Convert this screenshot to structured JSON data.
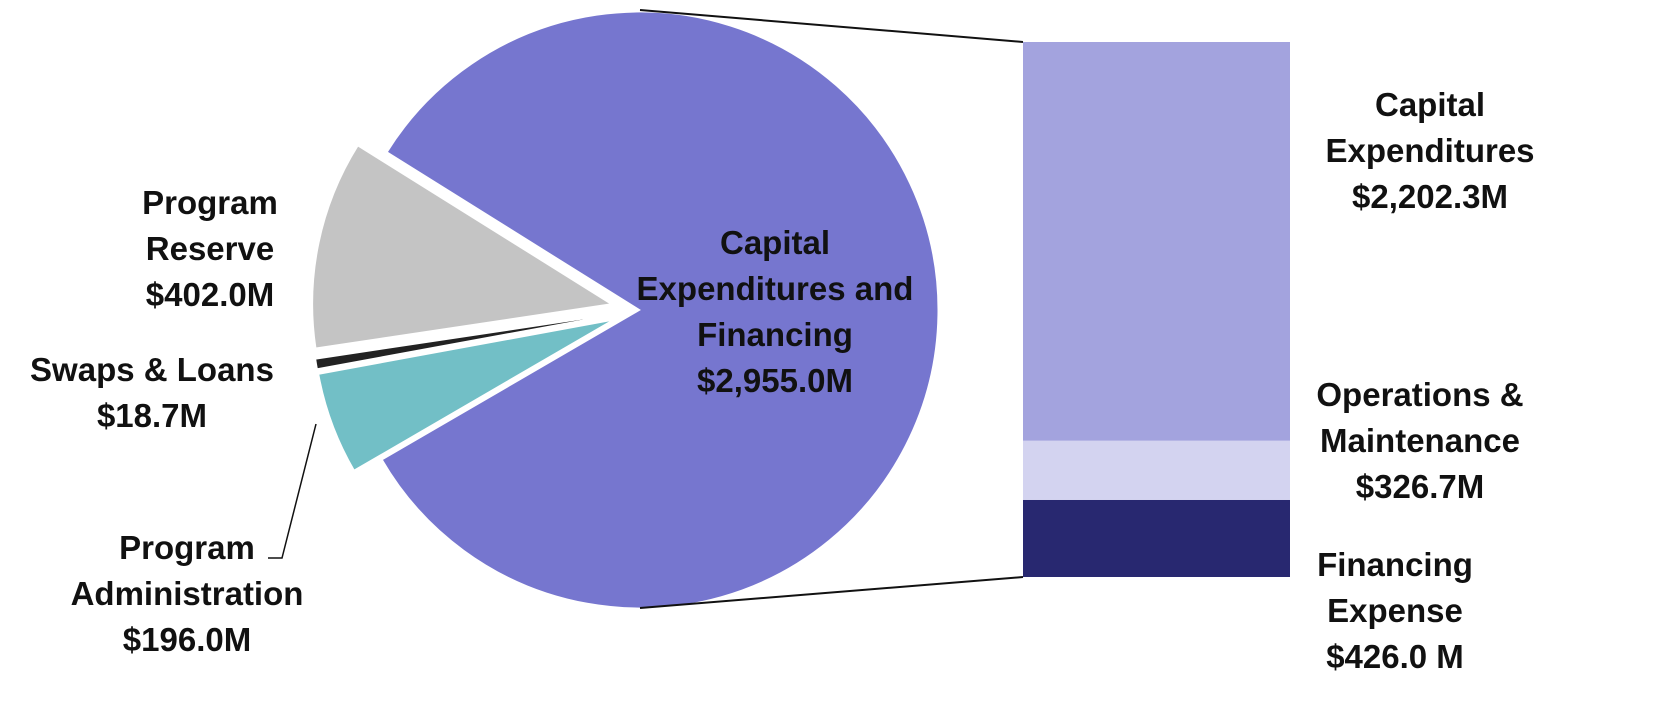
{
  "chart_data": [
    {
      "type": "pie",
      "categories": [
        "Capital Expenditures and Financing",
        "Program Reserve",
        "Swaps & Loans",
        "Program Administration"
      ],
      "values": [
        2955.0,
        402.0,
        18.7,
        196.0
      ],
      "value_labels": [
        "$2,955.0M",
        "$402.0M",
        "$18.7M",
        "$196.0M"
      ],
      "colors": [
        "#7676cf",
        "#c4c4c4",
        "#222222",
        "#72bfc6"
      ]
    },
    {
      "type": "stacked_bar",
      "categories": [
        "Capital Expenditures",
        "Operations & Maintenance",
        "Financing Expense"
      ],
      "values": [
        2202.3,
        326.7,
        426.0
      ],
      "value_labels": [
        "$2,202.3M",
        "$326.7M",
        "$426.0 M"
      ],
      "colors": [
        "#a3a3de",
        "#d3d3f0",
        "#282870"
      ]
    }
  ]
}
